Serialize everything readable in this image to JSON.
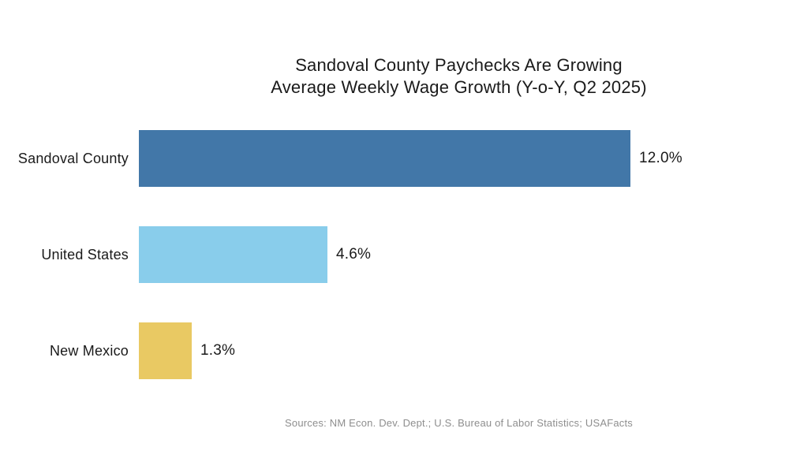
{
  "chart_data": {
    "type": "bar",
    "orientation": "horizontal",
    "title": "Sandoval County Paychecks Are Growing",
    "subtitle": "Average Weekly Wage Growth (Y-o-Y, Q2 2025)",
    "categories": [
      "Sandoval County",
      "United States",
      "New Mexico"
    ],
    "values": [
      12.0,
      4.6,
      1.3
    ],
    "value_labels": [
      "12.0%",
      "4.6%",
      "1.3%"
    ],
    "bar_colors": [
      "#4277A8",
      "#89CDEB",
      "#E9C963"
    ],
    "xlim": [
      0,
      12.0
    ],
    "grid": false,
    "legend": false,
    "axes_visible": false,
    "background_color": "#ffffff",
    "text_color": "#1a1a1a",
    "source_color": "#8e8e8e",
    "source_note": "Sources: NM Econ. Dev. Dept.; U.S. Bureau of Labor Statistics; USAFacts"
  }
}
